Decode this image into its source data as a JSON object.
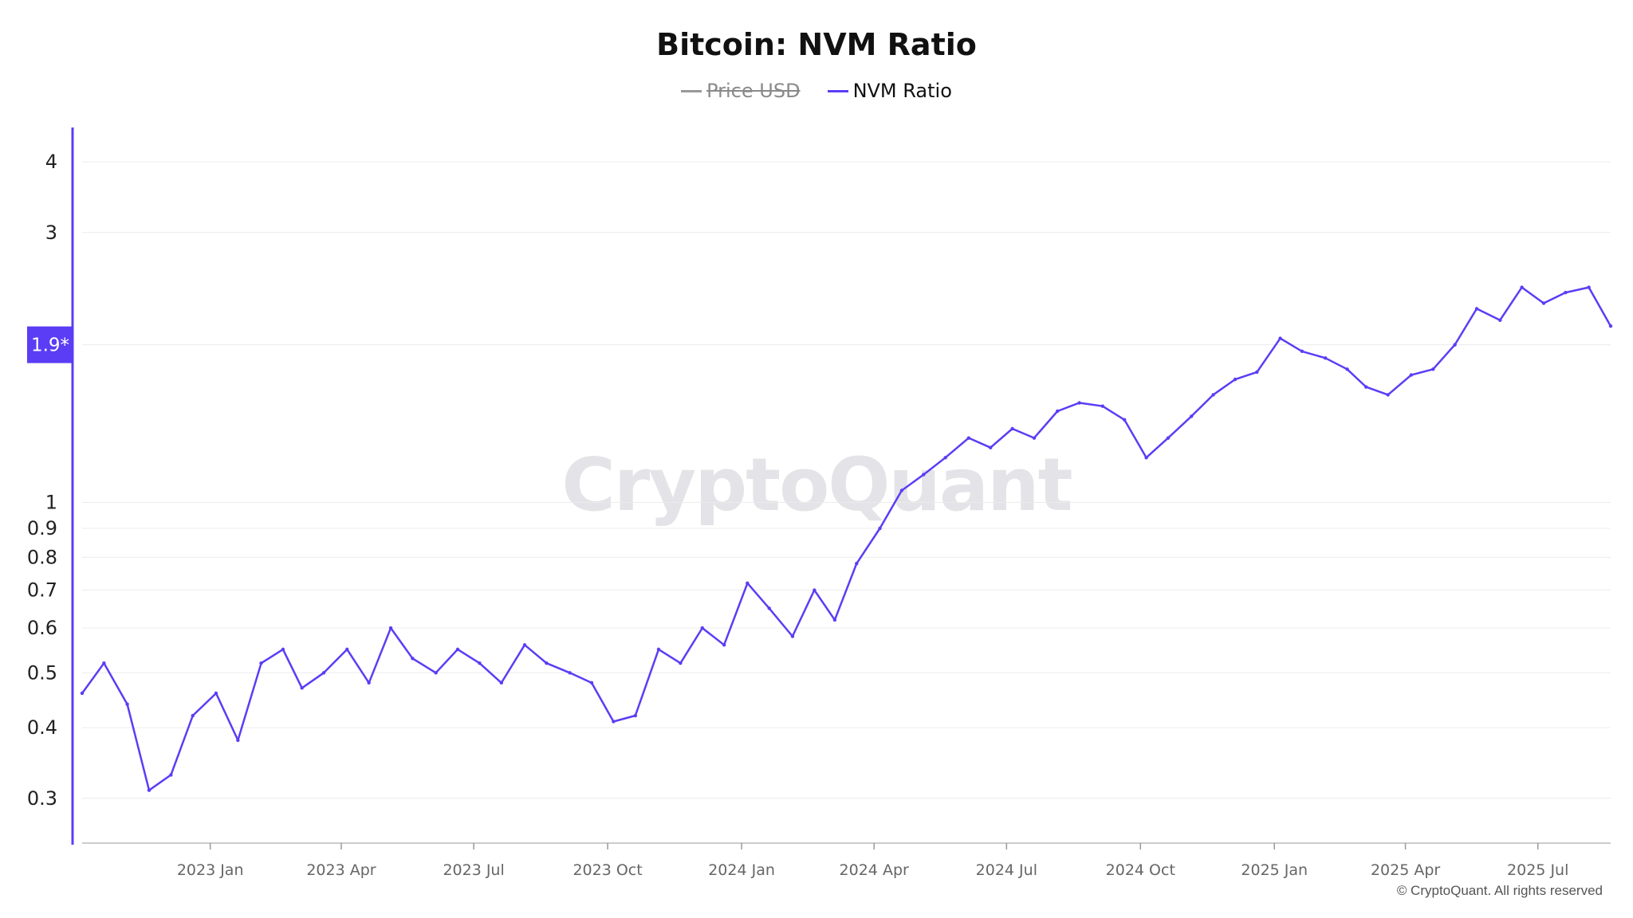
{
  "title": "Bitcoin: NVM Ratio",
  "legend": [
    {
      "label": "Price USD",
      "color": "#999999",
      "active": false
    },
    {
      "label": "NVM Ratio",
      "color": "#5b3df5",
      "active": true
    }
  ],
  "watermark": "CryptoQuant",
  "copyright": "© CryptoQuant. All rights reserved",
  "accent_color": "#5b3df5",
  "chart_data": {
    "type": "line",
    "title": "Bitcoin: NVM Ratio",
    "y_scale": "log",
    "ylim": [
      0.25,
      4.6
    ],
    "y_ticks": [
      0.3,
      0.4,
      0.5,
      0.6,
      0.7,
      0.8,
      0.9,
      1,
      3,
      4
    ],
    "y_tick_labels": [
      "0.3",
      "0.4",
      "0.5",
      "0.6",
      "0.7",
      "0.8",
      "0.9",
      "1",
      "3",
      "4"
    ],
    "y_marker": {
      "value": 1.9,
      "label": "1.9*"
    },
    "x_ticks": [
      "2023 Jan",
      "2023 Apr",
      "2023 Jul",
      "2023 Oct",
      "2024 Jan",
      "2024 Apr",
      "2024 Jul",
      "2024 Oct",
      "2025 Jan",
      "2025 Apr",
      "2025 Jul"
    ],
    "x_start": "2022-10-05",
    "x_end": "2025-08-20",
    "grid": true,
    "legend_position": "top-center",
    "series": [
      {
        "name": "NVM Ratio",
        "color": "#5b3df5",
        "x": [
          "2022-10-05",
          "2022-10-20",
          "2022-11-05",
          "2022-11-20",
          "2022-12-05",
          "2022-12-20",
          "2023-01-05",
          "2023-01-20",
          "2023-02-05",
          "2023-02-20",
          "2023-03-05",
          "2023-03-20",
          "2023-04-05",
          "2023-04-20",
          "2023-05-05",
          "2023-05-20",
          "2023-06-05",
          "2023-06-20",
          "2023-07-05",
          "2023-07-20",
          "2023-08-05",
          "2023-08-20",
          "2023-09-05",
          "2023-09-20",
          "2023-10-05",
          "2023-10-20",
          "2023-11-05",
          "2023-11-20",
          "2023-12-05",
          "2023-12-20",
          "2024-01-05",
          "2024-01-20",
          "2024-02-05",
          "2024-02-20",
          "2024-03-05",
          "2024-03-20",
          "2024-04-05",
          "2024-04-20",
          "2024-05-05",
          "2024-05-20",
          "2024-06-05",
          "2024-06-20",
          "2024-07-05",
          "2024-07-20",
          "2024-08-05",
          "2024-08-20",
          "2024-09-05",
          "2024-09-20",
          "2024-10-05",
          "2024-10-20",
          "2024-11-05",
          "2024-11-20",
          "2024-12-05",
          "2024-12-20",
          "2025-01-05",
          "2025-01-20",
          "2025-02-05",
          "2025-02-20",
          "2025-03-05",
          "2025-03-20",
          "2025-04-05",
          "2025-04-20",
          "2025-05-05",
          "2025-05-20",
          "2025-06-05",
          "2025-06-20",
          "2025-07-05",
          "2025-07-20",
          "2025-08-05",
          "2025-08-20"
        ],
        "values": [
          0.46,
          0.52,
          0.44,
          0.31,
          0.33,
          0.42,
          0.46,
          0.38,
          0.52,
          0.55,
          0.47,
          0.5,
          0.55,
          0.48,
          0.6,
          0.53,
          0.5,
          0.55,
          0.52,
          0.48,
          0.56,
          0.52,
          0.5,
          0.48,
          0.41,
          0.42,
          0.55,
          0.52,
          0.6,
          0.56,
          0.72,
          0.65,
          0.58,
          0.7,
          0.62,
          0.78,
          0.9,
          1.05,
          1.12,
          1.2,
          1.3,
          1.25,
          1.35,
          1.3,
          1.45,
          1.5,
          1.48,
          1.4,
          1.2,
          1.3,
          1.42,
          1.55,
          1.65,
          1.7,
          1.95,
          1.85,
          1.8,
          1.72,
          1.6,
          1.55,
          1.68,
          1.72,
          1.9,
          2.2,
          2.1,
          2.4,
          2.25,
          2.35,
          2.4,
          2.05
        ]
      }
    ]
  }
}
